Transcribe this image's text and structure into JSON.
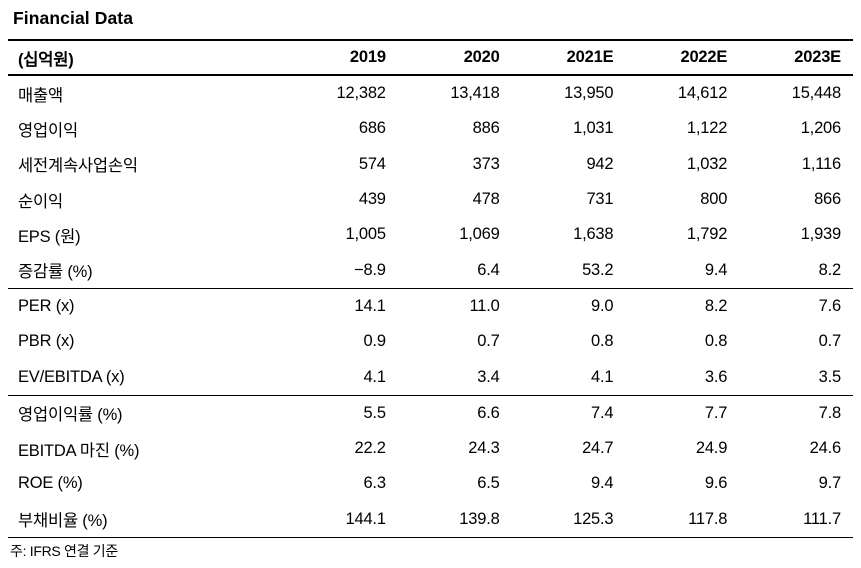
{
  "title": "Financial Data",
  "table": {
    "unit_header": "(십억원)",
    "years": [
      "2019",
      "2020",
      "2021E",
      "2022E",
      "2023E"
    ],
    "sections": [
      {
        "rows": [
          {
            "label": "매출액",
            "values": [
              "12,382",
              "13,418",
              "13,950",
              "14,612",
              "15,448"
            ]
          },
          {
            "label": "영업이익",
            "values": [
              "686",
              "886",
              "1,031",
              "1,122",
              "1,206"
            ]
          },
          {
            "label": "세전계속사업손익",
            "values": [
              "574",
              "373",
              "942",
              "1,032",
              "1,116"
            ]
          },
          {
            "label": "순이익",
            "values": [
              "439",
              "478",
              "731",
              "800",
              "866"
            ]
          },
          {
            "label": "EPS (원)",
            "values": [
              "1,005",
              "1,069",
              "1,638",
              "1,792",
              "1,939"
            ]
          },
          {
            "label": "증감률 (%)",
            "values": [
              "−8.9",
              "6.4",
              "53.2",
              "9.4",
              "8.2"
            ]
          }
        ]
      },
      {
        "rows": [
          {
            "label": "PER (x)",
            "values": [
              "14.1",
              "11.0",
              "9.0",
              "8.2",
              "7.6"
            ]
          },
          {
            "label": "PBR (x)",
            "values": [
              "0.9",
              "0.7",
              "0.8",
              "0.8",
              "0.7"
            ]
          },
          {
            "label": "EV/EBITDA (x)",
            "values": [
              "4.1",
              "3.4",
              "4.1",
              "3.6",
              "3.5"
            ]
          }
        ]
      },
      {
        "rows": [
          {
            "label": "영업이익률 (%)",
            "values": [
              "5.5",
              "6.6",
              "7.4",
              "7.7",
              "7.8"
            ]
          },
          {
            "label": "EBITDA 마진 (%)",
            "values": [
              "22.2",
              "24.3",
              "24.7",
              "24.9",
              "24.6"
            ]
          },
          {
            "label": "ROE (%)",
            "values": [
              "6.3",
              "6.5",
              "9.4",
              "9.6",
              "9.7"
            ]
          },
          {
            "label": "부채비율 (%)",
            "values": [
              "144.1",
              "139.8",
              "125.3",
              "117.8",
              "111.7"
            ]
          }
        ]
      }
    ],
    "footnote": "주: IFRS 연결 기준"
  }
}
